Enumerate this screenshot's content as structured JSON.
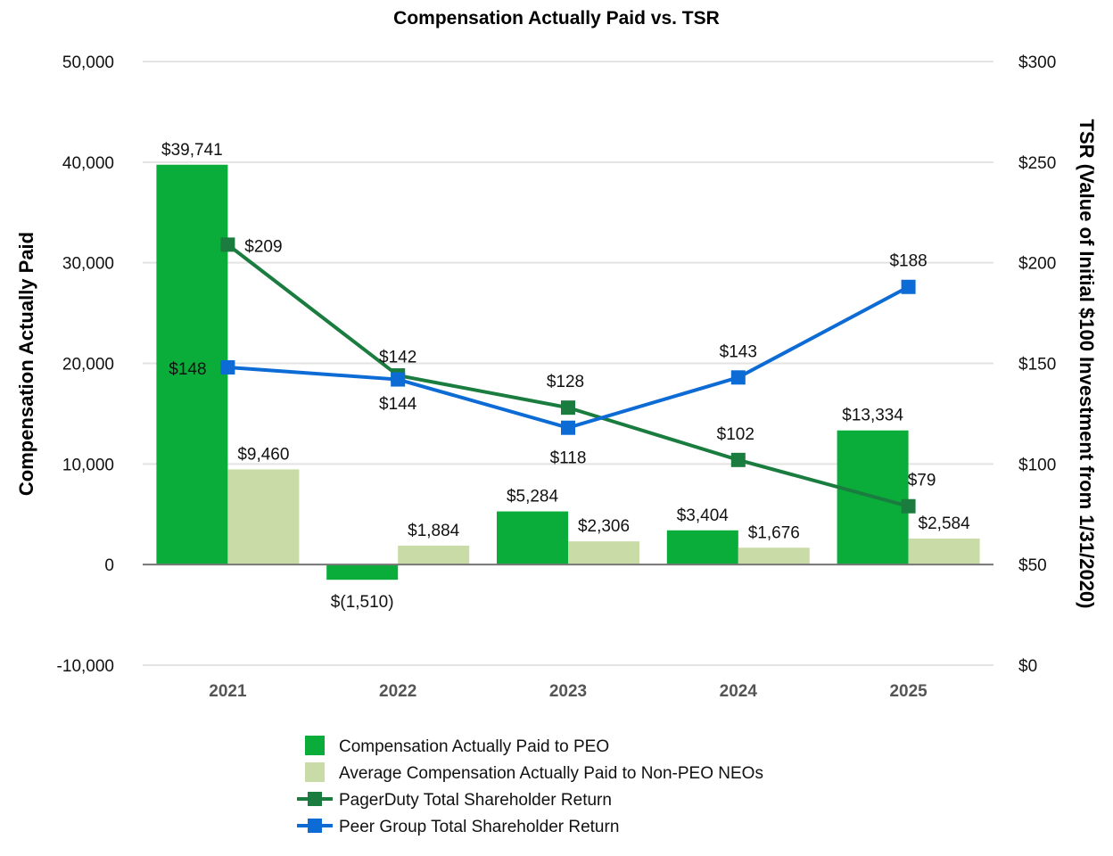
{
  "chart_data": {
    "type": "bar",
    "title": "Compensation Actually Paid vs. TSR",
    "categories": [
      "2021",
      "2022",
      "2023",
      "2024",
      "2025"
    ],
    "ylabel": "Compensation Actually Paid",
    "y2label": "TSR (Value of Initial $100 Investment from 1/31/2020)",
    "ylim": [
      -10000,
      50000
    ],
    "y2lim": [
      0,
      300
    ],
    "yticks": [
      "50,000",
      "40,000",
      "30,000",
      "20,000",
      "10,000",
      "0",
      "-10,000"
    ],
    "y2ticks": [
      "$300",
      "$250",
      "$200",
      "$150",
      "$100",
      "$50",
      "$0"
    ],
    "series": [
      {
        "name": "Compensation Actually Paid to PEO",
        "kind": "bar",
        "axis": "left",
        "color": "#0aad3a",
        "values": [
          39741,
          -1510,
          5284,
          3404,
          13334
        ],
        "labels": [
          "$39,741",
          "$(1,510)",
          "$5,284",
          "$3,404",
          "$13,334"
        ]
      },
      {
        "name": "Average Compensation Actually Paid to Non-PEO NEOs",
        "kind": "bar",
        "axis": "left",
        "color": "#c9dba6",
        "values": [
          9460,
          1884,
          2306,
          1676,
          2584
        ],
        "labels": [
          "$9,460",
          "$1,884",
          "$2,306",
          "$1,676",
          "$2,584"
        ]
      },
      {
        "name": "PagerDuty Total Shareholder Return",
        "kind": "line",
        "axis": "right",
        "color": "#1a7d3f",
        "values": [
          209,
          144,
          128,
          102,
          79
        ],
        "labels": [
          "$209",
          "$144",
          "$128",
          "$102",
          "$79"
        ]
      },
      {
        "name": "Peer Group Total Shareholder Return",
        "kind": "line",
        "axis": "right",
        "color": "#0c6bd4",
        "values": [
          148,
          142,
          118,
          143,
          188
        ],
        "labels": [
          "$148",
          "$142",
          "$118",
          "$143",
          "$188"
        ]
      }
    ],
    "legend": "bottom"
  }
}
